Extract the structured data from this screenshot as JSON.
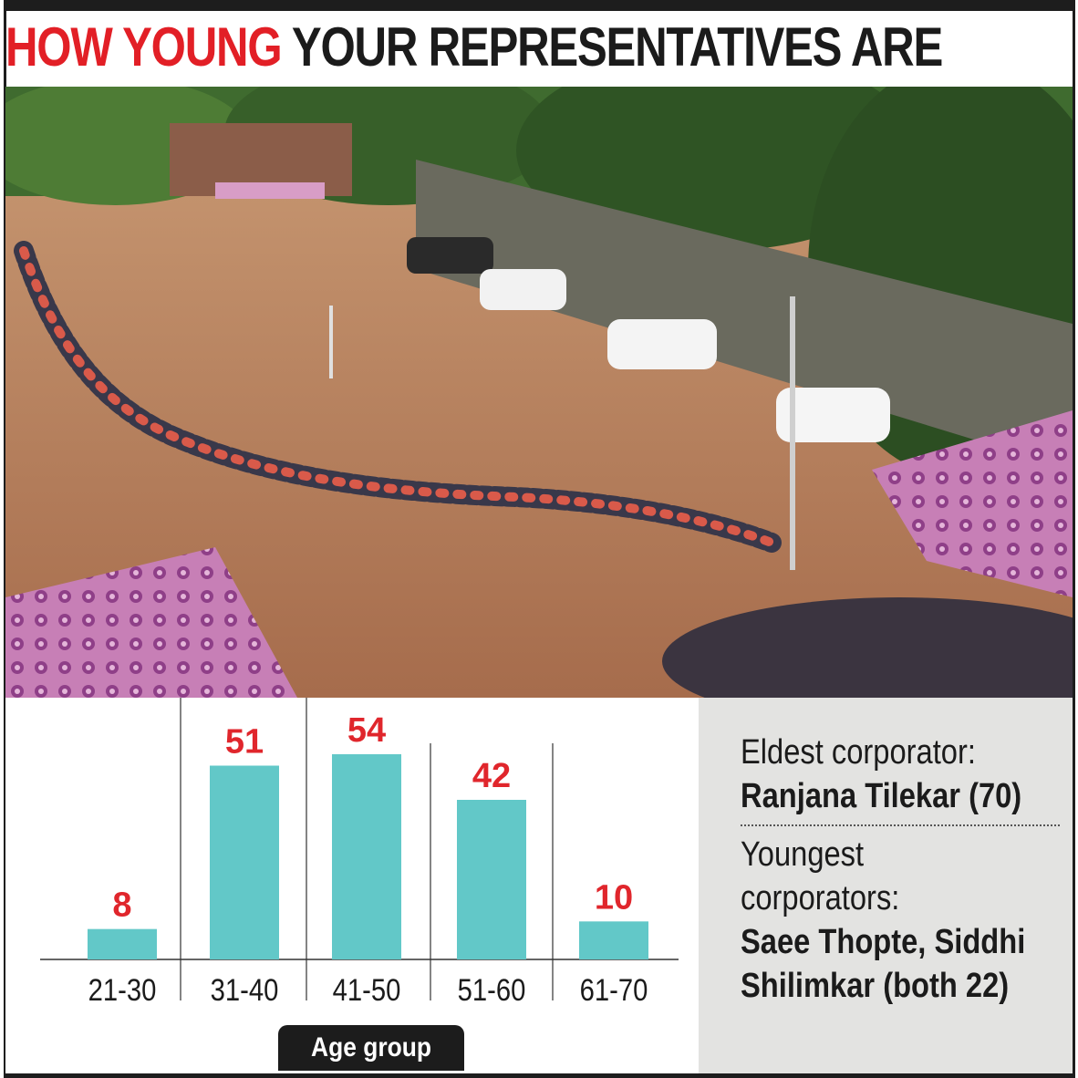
{
  "headline": {
    "highlight": "HOW YOUNG",
    "rest": " YOUR REPRESENTATIVES ARE"
  },
  "colors": {
    "highlight_red": "#e21f26",
    "bar_teal": "#62c8c8",
    "value_red": "#e0262c",
    "panel_grey": "#e3e3e1"
  },
  "chart_data": {
    "type": "bar",
    "categories": [
      "21-30",
      "31-40",
      "41-50",
      "51-60",
      "61-70"
    ],
    "values": [
      8,
      51,
      54,
      42,
      10
    ],
    "xlabel": "Age group",
    "ylabel": "",
    "ylim": [
      0,
      54
    ],
    "grid": false,
    "data_labels": true
  },
  "info": {
    "eldest_label": "Eldest corporator:",
    "eldest_name": "Ranjana Tilekar (70)",
    "youngest_label_1": "Youngest",
    "youngest_label_2": "corporators:",
    "youngest_names_1": "Saee Thopte, Siddhi",
    "youngest_names_2": "Shilimkar (both 22)"
  }
}
